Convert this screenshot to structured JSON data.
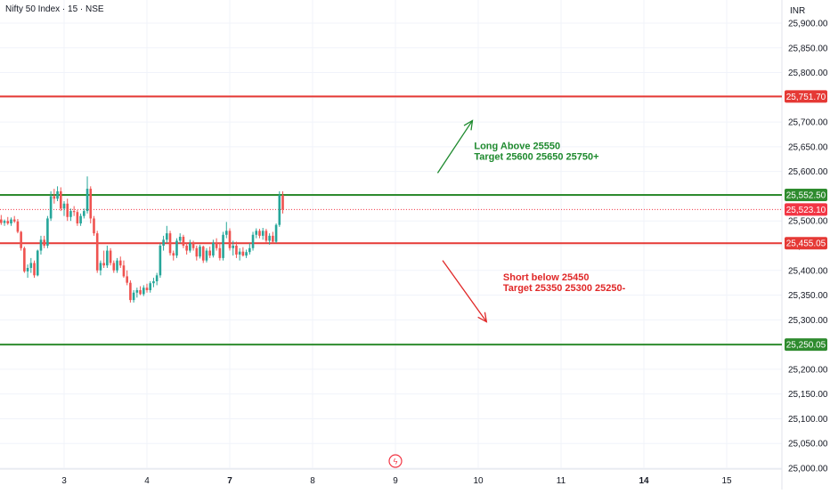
{
  "header": {
    "symbol": "Nifty 50 Index · 15 · NSE",
    "currency": "INR"
  },
  "colors": {
    "up": "#26a69a",
    "down": "#ef5350",
    "level_red": "#e53935",
    "level_green": "#2e8b2e",
    "grid": "#f0f3fa",
    "text": "#131722",
    "annot_green": "#1e8a2e",
    "annot_red": "#e02828",
    "last_price": "#f23645"
  },
  "chart_data": {
    "type": "candlestick",
    "title": "Nifty 50 Index · 15 · NSE",
    "currency": "INR",
    "y_ticks": [
      25000,
      25050,
      25100,
      25150,
      25200,
      25250,
      25300,
      25350,
      25400,
      25450,
      25500,
      25550,
      25600,
      25650,
      25700,
      25750,
      25800,
      25850,
      25900
    ],
    "y_tick_labels": [
      "25,000.00",
      "25,050.00",
      "25,100.00",
      "25,150.00",
      "25,200.00",
      "25,250.00",
      "25,300.00",
      "25,350.00",
      "25,400.00",
      "25,450.00",
      "25,500.00",
      "25,550.00",
      "25,600.00",
      "25,650.00",
      "25,700.00",
      "25,750.00",
      "25,800.00",
      "25,850.00",
      "25,900.00"
    ],
    "ylim": [
      25000,
      25910
    ],
    "x_ticks": [
      {
        "label": "3",
        "pos": 1.0,
        "bold": false
      },
      {
        "label": "4",
        "pos": 2.0,
        "bold": false
      },
      {
        "label": "7",
        "pos": 3.0,
        "bold": true
      },
      {
        "label": "8",
        "pos": 4.0,
        "bold": false
      },
      {
        "label": "9",
        "pos": 5.0,
        "bold": false
      },
      {
        "label": "10",
        "pos": 6.0,
        "bold": false
      },
      {
        "label": "11",
        "pos": 7.0,
        "bold": false
      },
      {
        "label": "14",
        "pos": 8.0,
        "bold": true
      },
      {
        "label": "15",
        "pos": 9.0,
        "bold": false
      }
    ],
    "xlim": [
      0.22,
      9.68
    ],
    "candle_bar_fraction": 0.04,
    "candles_start_pos": 0.22,
    "candles": [
      [
        25503,
        25512,
        25492,
        25496
      ],
      [
        25496,
        25503,
        25490,
        25500
      ],
      [
        25500,
        25508,
        25492,
        25495
      ],
      [
        25495,
        25507,
        25490,
        25503
      ],
      [
        25503,
        25510,
        25496,
        25499
      ],
      [
        25499,
        25504,
        25475,
        25478
      ],
      [
        25478,
        25480,
        25440,
        25445
      ],
      [
        25445,
        25448,
        25395,
        25398
      ],
      [
        25398,
        25412,
        25385,
        25405
      ],
      [
        25405,
        25425,
        25395,
        25415
      ],
      [
        25415,
        25420,
        25385,
        25390
      ],
      [
        25390,
        25442,
        25388,
        25440
      ],
      [
        25440,
        25470,
        25432,
        25462
      ],
      [
        25462,
        25470,
        25445,
        25450
      ],
      [
        25450,
        25510,
        25445,
        25505
      ],
      [
        25505,
        25560,
        25500,
        25550
      ],
      [
        25550,
        25565,
        25535,
        25545
      ],
      [
        25545,
        25570,
        25540,
        25560
      ],
      [
        25560,
        25568,
        25520,
        25525
      ],
      [
        25525,
        25540,
        25510,
        25535
      ],
      [
        25535,
        25545,
        25500,
        25508
      ],
      [
        25508,
        25525,
        25500,
        25520
      ],
      [
        25520,
        25530,
        25510,
        25518
      ],
      [
        25518,
        25522,
        25490,
        25495
      ],
      [
        25495,
        25515,
        25490,
        25510
      ],
      [
        25510,
        25525,
        25505,
        25520
      ],
      [
        25520,
        25590,
        25515,
        25565
      ],
      [
        25565,
        25570,
        25495,
        25505
      ],
      [
        25505,
        25510,
        25470,
        25475
      ],
      [
        25475,
        25480,
        25395,
        25400
      ],
      [
        25400,
        25420,
        25390,
        25415
      ],
      [
        25415,
        25440,
        25405,
        25410
      ],
      [
        25410,
        25450,
        25405,
        25440
      ],
      [
        25440,
        25445,
        25410,
        25415
      ],
      [
        25415,
        25420,
        25395,
        25400
      ],
      [
        25400,
        25425,
        25395,
        25420
      ],
      [
        25420,
        25428,
        25405,
        25410
      ],
      [
        25410,
        25420,
        25385,
        25388
      ],
      [
        25388,
        25400,
        25370,
        25375
      ],
      [
        25375,
        25380,
        25335,
        25340
      ],
      [
        25340,
        25360,
        25335,
        25355
      ],
      [
        25355,
        25365,
        25345,
        25360
      ],
      [
        25360,
        25368,
        25350,
        25352
      ],
      [
        25352,
        25370,
        25348,
        25365
      ],
      [
        25365,
        25373,
        25355,
        25360
      ],
      [
        25360,
        25378,
        25355,
        25374
      ],
      [
        25374,
        25385,
        25366,
        25378
      ],
      [
        25378,
        25395,
        25370,
        25390
      ],
      [
        25390,
        25455,
        25385,
        25450
      ],
      [
        25450,
        25470,
        25440,
        25462
      ],
      [
        25462,
        25490,
        25455,
        25475
      ],
      [
        25475,
        25480,
        25430,
        25435
      ],
      [
        25435,
        25440,
        25420,
        25430
      ],
      [
        25430,
        25465,
        25425,
        25460
      ],
      [
        25460,
        25475,
        25455,
        25468
      ],
      [
        25468,
        25472,
        25445,
        25450
      ],
      [
        25450,
        25456,
        25432,
        25440
      ],
      [
        25440,
        25462,
        25436,
        25455
      ],
      [
        25455,
        25460,
        25440,
        25445
      ],
      [
        25445,
        25450,
        25420,
        25428
      ],
      [
        25428,
        25452,
        25424,
        25448
      ],
      [
        25448,
        25450,
        25415,
        25420
      ],
      [
        25420,
        25445,
        25416,
        25440
      ],
      [
        25440,
        25448,
        25425,
        25430
      ],
      [
        25430,
        25462,
        25426,
        25456
      ],
      [
        25456,
        25465,
        25440,
        25445
      ],
      [
        25445,
        25455,
        25420,
        25425
      ],
      [
        25425,
        25478,
        25420,
        25472
      ],
      [
        25472,
        25498,
        25465,
        25480
      ],
      [
        25480,
        25485,
        25440,
        25445
      ],
      [
        25445,
        25460,
        25430,
        25450
      ],
      [
        25450,
        25458,
        25425,
        25432
      ],
      [
        25432,
        25445,
        25420,
        25438
      ],
      [
        25438,
        25447,
        25428,
        25430
      ],
      [
        25430,
        25442,
        25425,
        25437
      ],
      [
        25437,
        25455,
        25432,
        25445
      ],
      [
        25445,
        25478,
        25440,
        25472
      ],
      [
        25472,
        25485,
        25465,
        25480
      ],
      [
        25480,
        25484,
        25465,
        25470
      ],
      [
        25470,
        25486,
        25462,
        25480
      ],
      [
        25480,
        25484,
        25455,
        25460
      ],
      [
        25460,
        25475,
        25452,
        25470
      ],
      [
        25470,
        25478,
        25455,
        25458
      ],
      [
        25458,
        25495,
        25455,
        25492
      ],
      [
        25492,
        25560,
        25488,
        25552
      ],
      [
        25552,
        25560,
        25515,
        25523
      ]
    ],
    "levels": [
      {
        "value": 25751.7,
        "label": "25,751.70",
        "color": "#e53935",
        "width": 2
      },
      {
        "value": 25552.5,
        "label": "25,552.50",
        "color": "#2e8b2e",
        "width": 2
      },
      {
        "value": 25455.05,
        "label": "25,455.05",
        "color": "#e53935",
        "width": 2
      },
      {
        "value": 25250.05,
        "label": "25,250.05",
        "color": "#2e8b2e",
        "width": 2
      }
    ],
    "last_price": {
      "value": 25523.1,
      "label": "25,523.10"
    },
    "annotations": [
      {
        "lines": [
          "Long  Above 25550",
          "Target 25600 25650 25750+"
        ],
        "color": "#1e8a2e",
        "x": 5.95,
        "y": 25645
      },
      {
        "lines": [
          "Short  below 25450",
          "Target 25350 25300 25250-"
        ],
        "color": "#e02828",
        "x": 6.3,
        "y": 25380
      }
    ],
    "arrows": [
      {
        "from": [
          5.51,
          25597
        ],
        "to": [
          5.93,
          25703
        ],
        "color": "#1e8a2e"
      },
      {
        "from": [
          5.57,
          25420
        ],
        "to": [
          6.1,
          25296
        ],
        "color": "#e02828"
      }
    ],
    "event_marker": {
      "label": "ϟ",
      "pos": 5.0
    }
  }
}
